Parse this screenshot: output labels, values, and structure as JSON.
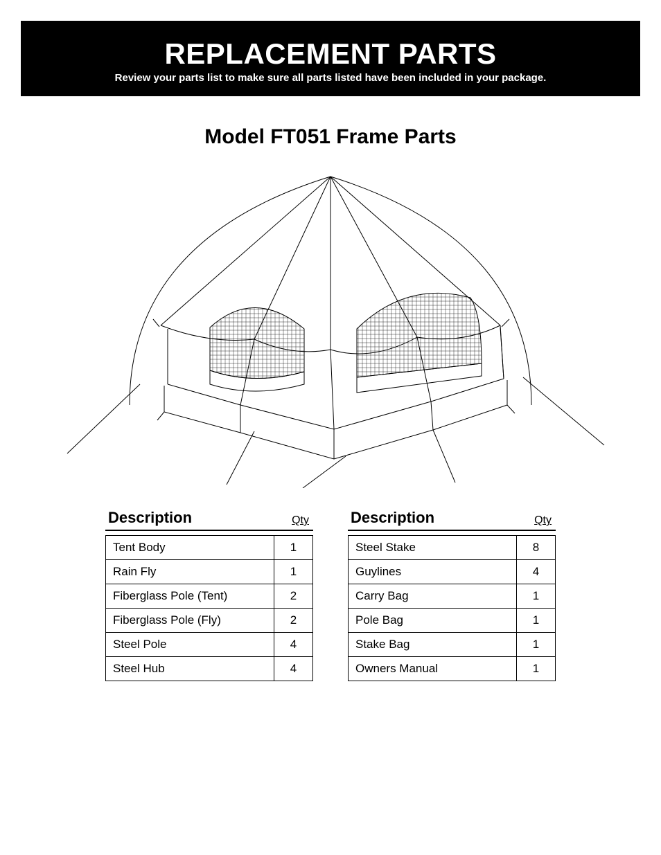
{
  "header": {
    "title": "REPLACEMENT PARTS",
    "subtitle": "Review your parts list to make sure all parts listed have been included in your package."
  },
  "model_title": "Model FT051 Frame Parts",
  "diagram": {
    "type": "line-drawing",
    "subject": "dome-tent",
    "stroke_color": "#000000",
    "stroke_width": 1,
    "mesh_fill": "crosshatch"
  },
  "tables": {
    "headers": {
      "description": "Description",
      "qty": "Qty"
    },
    "left": [
      {
        "desc": "Tent Body",
        "qty": "1"
      },
      {
        "desc": "Rain Fly",
        "qty": "1"
      },
      {
        "desc": "Fiberglass Pole (Tent)",
        "qty": "2"
      },
      {
        "desc": "Fiberglass Pole (Fly)",
        "qty": "2"
      },
      {
        "desc": "Steel Pole",
        "qty": "4"
      },
      {
        "desc": "Steel Hub",
        "qty": "4"
      }
    ],
    "right": [
      {
        "desc": "Steel Stake",
        "qty": "8"
      },
      {
        "desc": "Guylines",
        "qty": "4"
      },
      {
        "desc": "Carry Bag",
        "qty": "1"
      },
      {
        "desc": "Pole Bag",
        "qty": "1"
      },
      {
        "desc": "Stake Bag",
        "qty": "1"
      },
      {
        "desc": "Owners Manual",
        "qty": "1"
      }
    ]
  },
  "colors": {
    "page_bg": "#ffffff",
    "band_bg": "#000000",
    "text_on_band": "#ffffff",
    "text": "#000000",
    "table_border": "#000000"
  },
  "typography": {
    "title_size_pt": 32,
    "subtitle_size_pt": 11,
    "model_title_size_pt": 22,
    "table_header_size_pt": 16,
    "table_cell_size_pt": 13,
    "family": "Helvetica Condensed"
  }
}
